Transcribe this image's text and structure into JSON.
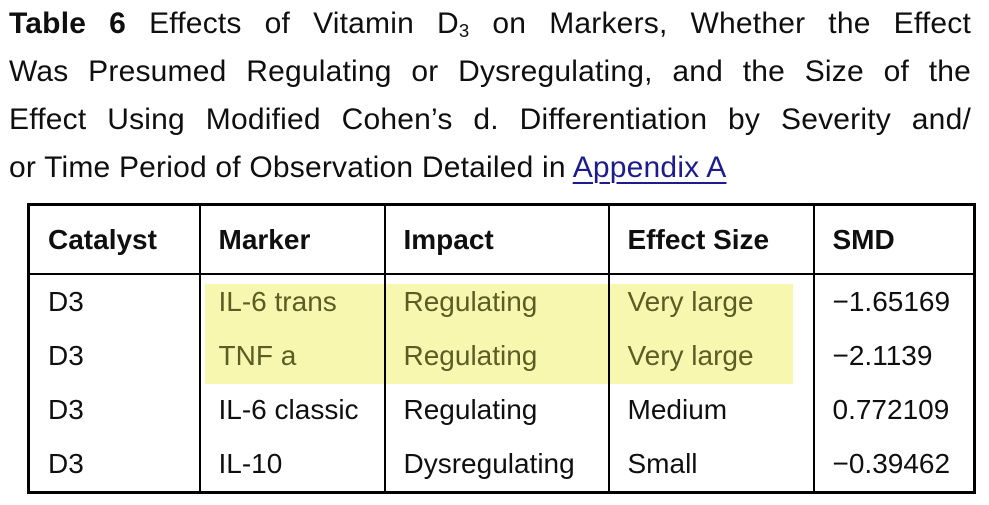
{
  "title": {
    "line1_bold": "Table 6",
    "line1_before_sub": " Effects of Vitamin D",
    "line1_sub": "3",
    "line1_after_sub": " on Markers, Whether the Effect",
    "line2": "Was Presumed Regulating or Dysregulating, and the Size of the",
    "line3": "Effect Using Modified Cohen’s d. Differentiation by Severity and/",
    "line4_text": "or Time Period of Observation Detailed in ",
    "line4_link": "Appendix A"
  },
  "table": {
    "headers": [
      "Catalyst",
      "Marker",
      "Impact",
      "Effect Size",
      "SMD"
    ],
    "rows": [
      {
        "catalyst": "D3",
        "marker": "IL-6 trans",
        "impact": "Regulating",
        "effect_size": "Very large",
        "smd": "−1.65169",
        "highlighted": true
      },
      {
        "catalyst": "D3",
        "marker": "TNF a",
        "impact": "Regulating",
        "effect_size": "Very large",
        "smd": "−2.1139",
        "highlighted": true
      },
      {
        "catalyst": "D3",
        "marker": "IL-6 classic",
        "impact": "Regulating",
        "effect_size": "Medium",
        "smd": "0.772109",
        "highlighted": false
      },
      {
        "catalyst": "D3",
        "marker": "IL-10",
        "impact": "Dysregulating",
        "effect_size": "Small",
        "smd": "−0.39462",
        "highlighted": false
      }
    ]
  },
  "colors": {
    "highlight_background": "#f7f7b0",
    "highlight_text": "#5c5c24",
    "link": "#1c1c8f",
    "text": "#0f0f0f",
    "border": "#000000"
  }
}
